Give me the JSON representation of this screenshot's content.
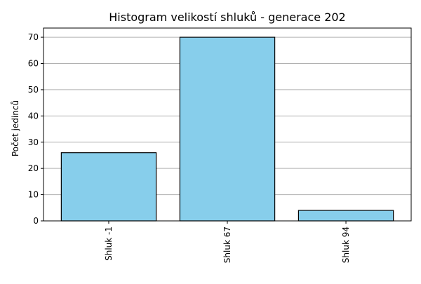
{
  "chart_data": {
    "type": "bar",
    "title": "Histogram velikostí shluků - generace 202",
    "xlabel": "",
    "ylabel": "Počet jedinců",
    "categories": [
      "Shluk -1",
      "Shluk 67",
      "Shluk 94"
    ],
    "values": [
      26,
      70,
      4
    ],
    "ylim": [
      0,
      73.5
    ],
    "yticks": [
      "0",
      "10",
      "20",
      "30",
      "40",
      "50",
      "60",
      "70"
    ],
    "grid": "y-major",
    "legend": "none",
    "bar_color": "#87ceeb",
    "edge_color": "#000000",
    "grid_color": "#b0b0b0"
  }
}
